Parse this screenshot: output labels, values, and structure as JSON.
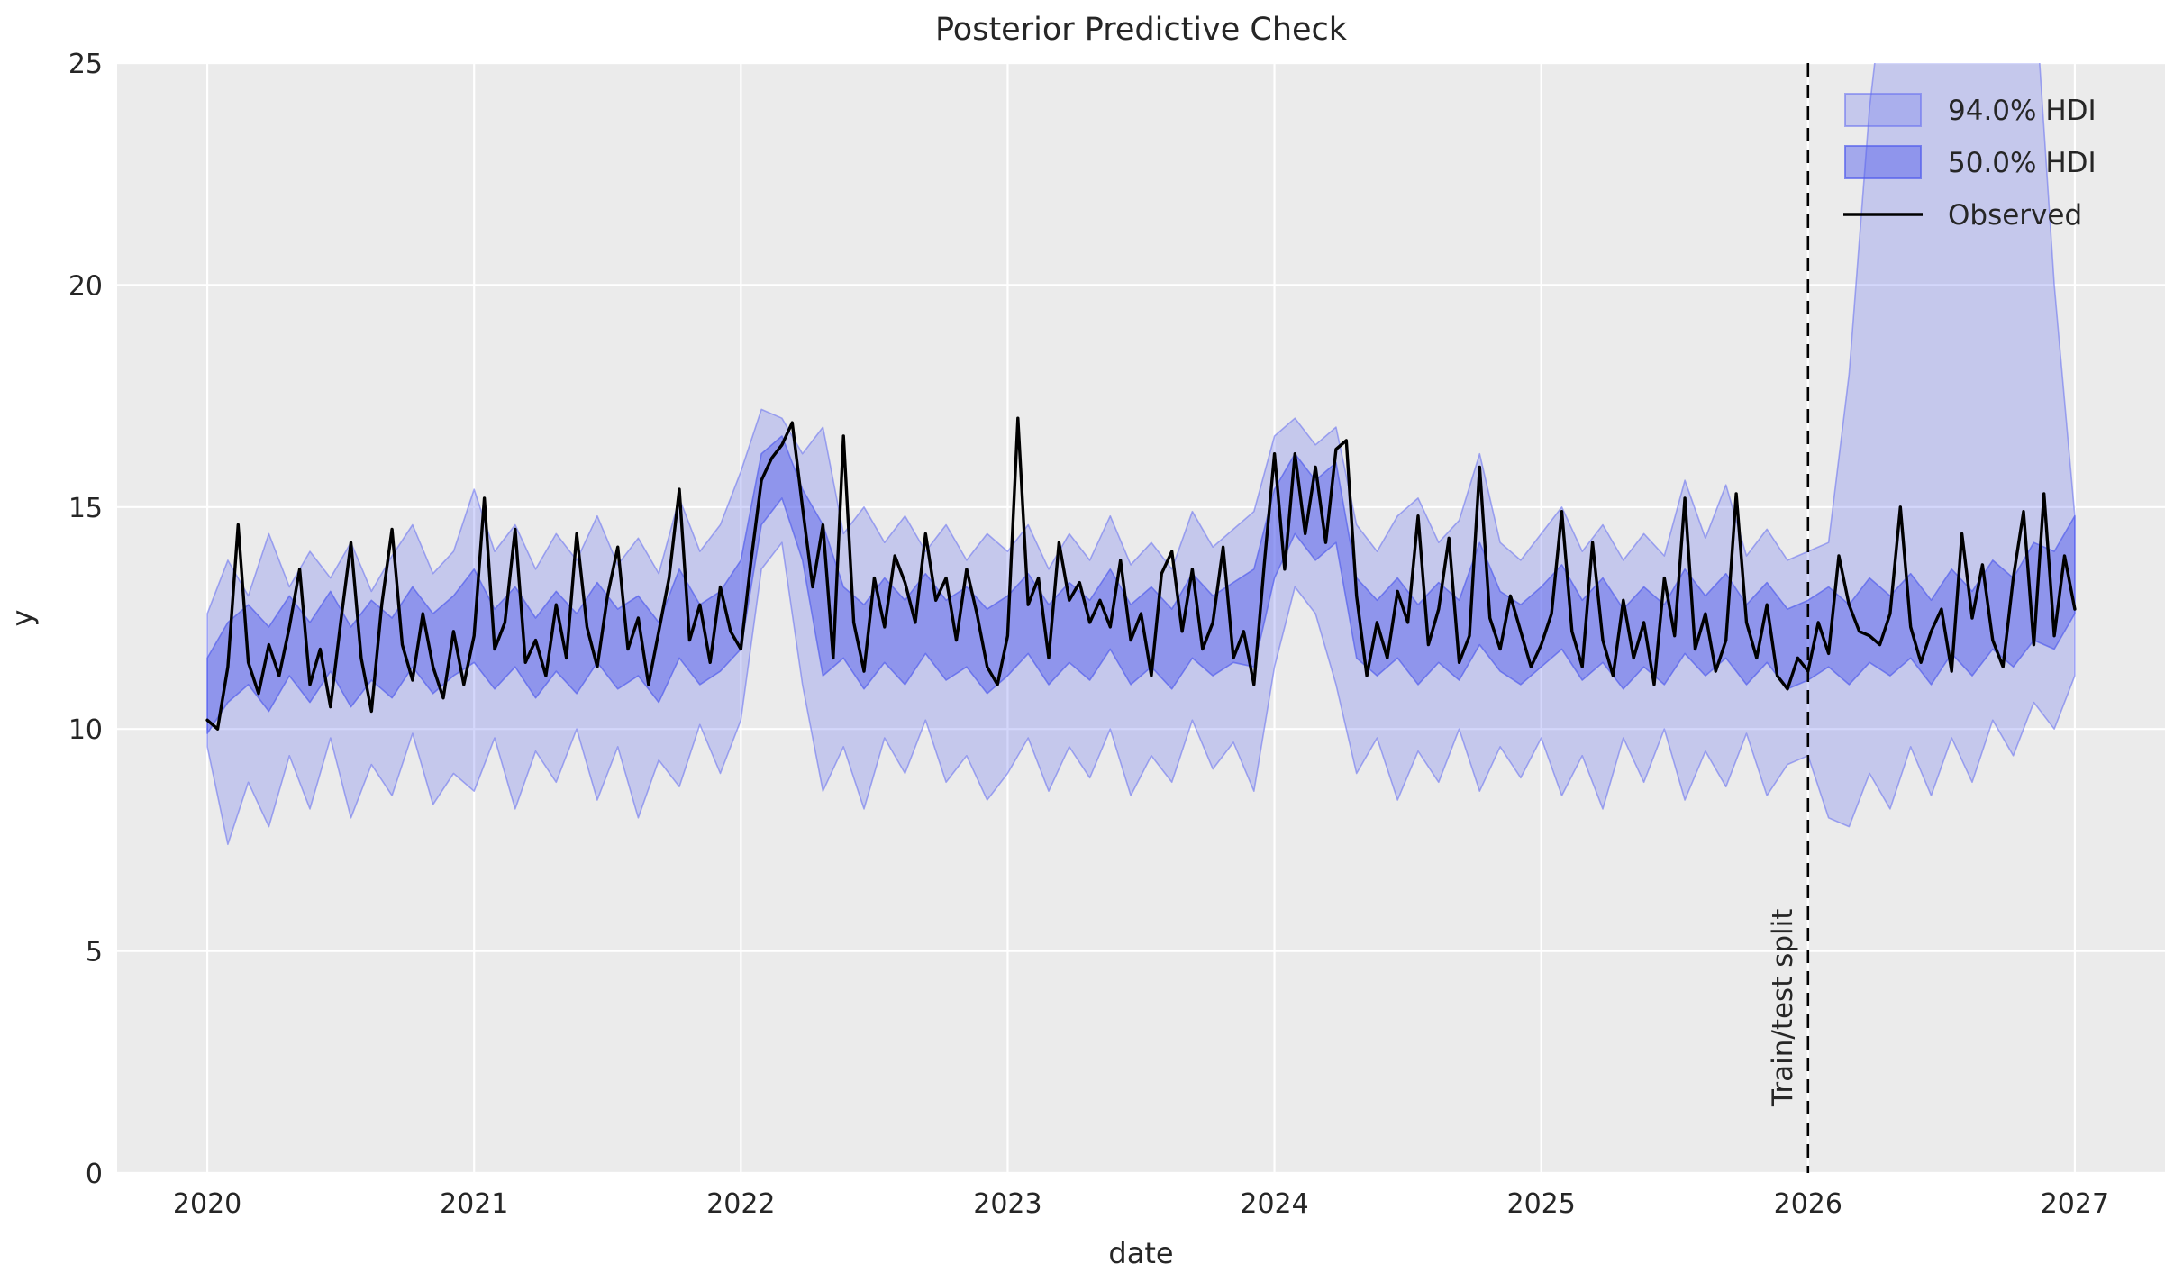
{
  "figure": {
    "title": "Posterior Predictive Check",
    "xlabel": "date",
    "ylabel": "y",
    "background_color": "#ffffff",
    "axes_background_color": "#ebebeb",
    "grid_color": "#ffffff",
    "text_color": "#262626",
    "observed_color": "#000000",
    "band_color": "#646ef0",
    "hdi94_fill": "rgba(100,110,240,0.28)",
    "hdi94_edge": "rgba(100,110,240,0.55)",
    "hdi50_fill": "rgba(84,95,236,0.48)",
    "hdi50_edge": "rgba(84,95,236,0.70)"
  },
  "legend": {
    "position": "upper right",
    "items": [
      {
        "label": "94.0% HDI",
        "type": "patch"
      },
      {
        "label": "50.0% HDI",
        "type": "patch"
      },
      {
        "label": "Observed",
        "type": "line"
      }
    ]
  },
  "annotations": {
    "train_test_split": {
      "x": 2026,
      "label": "Train/test split",
      "style": "dashed",
      "color": "#000000"
    }
  },
  "chart_data": {
    "type": "line",
    "title": "Posterior Predictive Check",
    "xlabel": "date",
    "ylabel": "y",
    "xlim": [
      2019.662,
      2027.338
    ],
    "ylim": [
      0,
      25
    ],
    "xticks": [
      2020,
      2021,
      2022,
      2023,
      2024,
      2025,
      2026,
      2027
    ],
    "yticks": [
      0,
      5,
      10,
      15,
      20,
      25
    ],
    "grid": true,
    "legend_position": "upper right",
    "series": [
      {
        "name": "94.0% HDI",
        "kind": "band",
        "x_start": 2020,
        "x_step": 0.0769231,
        "lower": [
          9.6,
          7.4,
          8.8,
          7.8,
          9.4,
          8.2,
          9.8,
          8.0,
          9.2,
          8.5,
          9.9,
          8.3,
          9.0,
          8.6,
          9.8,
          8.2,
          9.5,
          8.8,
          10.0,
          8.4,
          9.6,
          8.0,
          9.3,
          8.7,
          10.1,
          9.0,
          10.2,
          13.6,
          14.2,
          11.0,
          8.6,
          9.6,
          8.2,
          9.8,
          9.0,
          10.2,
          8.8,
          9.4,
          8.4,
          9.0,
          9.8,
          8.6,
          9.6,
          8.9,
          10.0,
          8.5,
          9.4,
          8.8,
          10.2,
          9.1,
          9.7,
          8.6,
          11.4,
          13.2,
          12.6,
          11.0,
          9.0,
          9.8,
          8.4,
          9.5,
          8.8,
          10.0,
          8.6,
          9.6,
          8.9,
          9.8,
          8.5,
          9.4,
          8.2,
          9.8,
          8.8,
          10.0,
          8.4,
          9.5,
          8.7,
          9.9,
          8.5,
          9.2,
          9.4,
          8.0,
          7.8,
          9.0,
          8.2,
          9.6,
          8.5,
          9.8,
          8.8,
          10.2,
          9.4,
          10.6,
          10.0,
          11.2
        ],
        "upper": [
          12.6,
          13.8,
          13.0,
          14.4,
          13.2,
          14.0,
          13.4,
          14.2,
          13.1,
          13.9,
          14.6,
          13.5,
          14.0,
          15.4,
          14.0,
          14.6,
          13.6,
          14.4,
          13.8,
          14.8,
          13.7,
          14.3,
          13.5,
          15.2,
          14.0,
          14.6,
          15.8,
          17.2,
          17.0,
          16.2,
          16.8,
          14.4,
          15.0,
          14.2,
          14.8,
          14.0,
          14.6,
          13.8,
          14.4,
          14.0,
          14.6,
          13.6,
          14.4,
          13.8,
          14.8,
          13.7,
          14.2,
          13.6,
          14.9,
          14.1,
          14.5,
          14.9,
          16.6,
          17.0,
          16.4,
          16.8,
          14.6,
          14.0,
          14.8,
          15.2,
          14.2,
          14.7,
          16.2,
          14.2,
          13.8,
          14.4,
          15.0,
          14.0,
          14.6,
          13.8,
          14.4,
          13.9,
          15.6,
          14.3,
          15.5,
          13.9,
          14.5,
          13.8,
          14.0,
          14.2,
          18.0,
          24.0,
          28.0,
          28.6,
          27.8,
          28.4,
          27.6,
          28.2,
          27.5,
          27.0,
          20.0,
          14.8
        ]
      },
      {
        "name": "50.0% HDI",
        "kind": "band",
        "x_start": 2020,
        "x_step": 0.0769231,
        "lower": [
          9.9,
          10.6,
          11.0,
          10.4,
          11.2,
          10.6,
          11.3,
          10.5,
          11.1,
          10.7,
          11.4,
          10.8,
          11.2,
          11.5,
          10.9,
          11.4,
          10.7,
          11.3,
          10.8,
          11.5,
          10.9,
          11.2,
          10.6,
          11.6,
          11.0,
          11.3,
          11.8,
          14.6,
          15.2,
          13.8,
          11.2,
          11.6,
          10.9,
          11.5,
          11.0,
          11.7,
          11.1,
          11.4,
          10.8,
          11.2,
          11.7,
          11.0,
          11.5,
          11.1,
          11.8,
          11.0,
          11.4,
          10.9,
          11.6,
          11.2,
          11.5,
          11.4,
          13.4,
          14.4,
          13.8,
          14.2,
          11.6,
          11.2,
          11.6,
          11.0,
          11.5,
          11.1,
          11.9,
          11.3,
          11.0,
          11.4,
          11.8,
          11.1,
          11.5,
          10.9,
          11.4,
          11.0,
          11.7,
          11.2,
          11.6,
          11.0,
          11.5,
          10.9,
          11.1,
          11.4,
          11.0,
          11.5,
          11.2,
          11.6,
          11.0,
          11.7,
          11.2,
          11.8,
          11.4,
          12.0,
          11.8,
          12.6
        ],
        "upper": [
          11.6,
          12.4,
          12.8,
          12.3,
          13.0,
          12.4,
          13.1,
          12.3,
          12.9,
          12.5,
          13.2,
          12.6,
          13.0,
          13.6,
          12.7,
          13.2,
          12.5,
          13.1,
          12.6,
          13.3,
          12.7,
          13.0,
          12.4,
          13.6,
          12.8,
          13.1,
          13.8,
          16.2,
          16.6,
          15.4,
          14.6,
          13.2,
          12.8,
          13.4,
          12.9,
          13.5,
          12.9,
          13.2,
          12.7,
          13.0,
          13.5,
          12.8,
          13.3,
          12.9,
          13.6,
          12.8,
          13.2,
          12.7,
          13.5,
          13.0,
          13.3,
          13.6,
          15.4,
          16.2,
          15.6,
          16.0,
          13.4,
          12.9,
          13.4,
          12.8,
          13.3,
          12.9,
          14.2,
          13.1,
          12.8,
          13.2,
          13.7,
          12.9,
          13.4,
          12.7,
          13.2,
          12.8,
          13.6,
          13.0,
          13.5,
          12.8,
          13.3,
          12.7,
          12.9,
          13.2,
          12.8,
          13.4,
          13.0,
          13.5,
          12.9,
          13.6,
          13.1,
          13.8,
          13.4,
          14.2,
          14.0,
          14.8
        ]
      },
      {
        "name": "Observed",
        "kind": "line",
        "x_start": 2020,
        "x_step": 0.0384615,
        "values": [
          10.2,
          10.0,
          11.4,
          14.6,
          11.5,
          10.8,
          11.9,
          11.2,
          12.3,
          13.6,
          11.0,
          11.8,
          10.5,
          12.4,
          14.2,
          11.6,
          10.4,
          12.8,
          14.5,
          11.9,
          11.1,
          12.6,
          11.4,
          10.7,
          12.2,
          11.0,
          12.1,
          15.2,
          11.8,
          12.4,
          14.5,
          11.5,
          12.0,
          11.2,
          12.8,
          11.6,
          14.4,
          12.3,
          11.4,
          13.0,
          14.1,
          11.8,
          12.5,
          11.0,
          12.2,
          13.4,
          15.4,
          12.0,
          12.8,
          11.5,
          13.2,
          12.2,
          11.8,
          13.8,
          15.6,
          16.1,
          16.4,
          16.9,
          15.0,
          13.2,
          14.6,
          11.6,
          16.6,
          12.4,
          11.3,
          13.4,
          12.3,
          13.9,
          13.3,
          12.4,
          14.4,
          12.9,
          13.4,
          12.0,
          13.6,
          12.6,
          11.4,
          11.0,
          12.1,
          17.0,
          12.8,
          13.4,
          11.6,
          14.2,
          12.9,
          13.3,
          12.4,
          12.9,
          12.3,
          13.8,
          12.0,
          12.6,
          11.2,
          13.5,
          14.0,
          12.2,
          13.6,
          11.8,
          12.4,
          14.1,
          11.6,
          12.2,
          11.0,
          13.7,
          16.2,
          13.6,
          16.2,
          14.4,
          15.9,
          14.2,
          16.3,
          16.5,
          13.0,
          11.2,
          12.4,
          11.6,
          13.1,
          12.4,
          14.8,
          11.9,
          12.7,
          14.3,
          11.5,
          12.1,
          15.9,
          12.5,
          11.8,
          13.0,
          12.2,
          11.4,
          11.9,
          12.6,
          14.9,
          12.2,
          11.4,
          14.2,
          12.0,
          11.2,
          12.9,
          11.6,
          12.4,
          11.0,
          13.4,
          12.1,
          15.2,
          11.8,
          12.6,
          11.3,
          12.0,
          15.3,
          12.4,
          11.6,
          12.8,
          11.2,
          10.9,
          11.6,
          11.3,
          12.4,
          11.7,
          13.9,
          12.8,
          12.2,
          12.1,
          11.9,
          12.6,
          15.0,
          12.3,
          11.5,
          12.2,
          12.7,
          11.3,
          14.4,
          12.5,
          13.7,
          12.0,
          11.4,
          13.4,
          14.9,
          11.9,
          15.3,
          12.1,
          13.9,
          12.7
        ]
      }
    ]
  }
}
